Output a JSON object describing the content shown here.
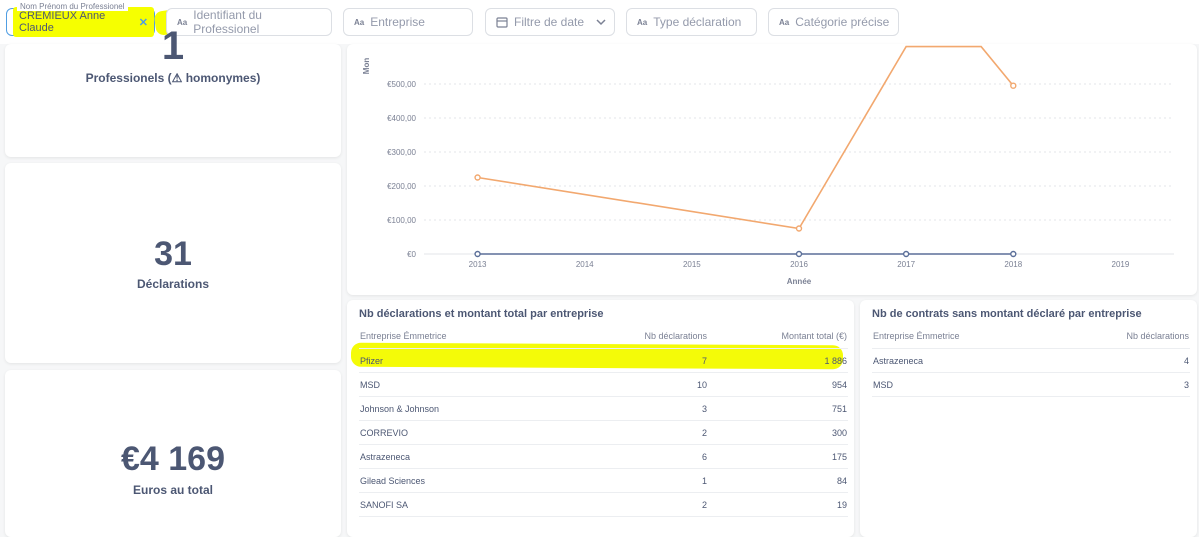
{
  "filters": {
    "active_filter": {
      "legend": "Nom Prénom du Professionel",
      "value": "CREMIEUX Anne Claude"
    },
    "items": [
      {
        "label": "Identifiant du Professionel",
        "icon": "text-icon"
      },
      {
        "label": "Entreprise",
        "icon": "text-icon"
      },
      {
        "label": "Filtre de date",
        "icon": "calendar-icon"
      },
      {
        "label": "Type déclaration",
        "icon": "text-icon"
      },
      {
        "label": "Catégorie précise",
        "icon": "text-icon"
      }
    ],
    "aa": "Aa"
  },
  "scalars": {
    "pros": {
      "value": "1",
      "label": "Professionels (⚠ homonymes)"
    },
    "declarations": {
      "value": "31",
      "label": "Déclarations"
    },
    "euros": {
      "value": "€4 169",
      "label": "Euros au total"
    }
  },
  "chart_data": {
    "type": "line",
    "xlabel": "Année",
    "ylabel": "Mon",
    "x": [
      2013,
      2014,
      2015,
      2016,
      2017,
      2018,
      2019
    ],
    "ylim": [
      0,
      550
    ],
    "yticks": [
      "€0",
      "€100,00",
      "€200,00",
      "€300,00",
      "€400,00",
      "€500,00"
    ],
    "series": [
      {
        "color": "#f2a86f",
        "points": [
          [
            2013,
            225
          ],
          [
            2016,
            75
          ],
          [
            2017,
            610
          ],
          [
            2017.7,
            610
          ],
          [
            2018,
            495
          ]
        ]
      },
      {
        "color": "#5b6f99",
        "points": [
          [
            2013,
            0
          ],
          [
            2016,
            0
          ],
          [
            2017,
            0
          ],
          [
            2018,
            0
          ]
        ]
      }
    ]
  },
  "table1": {
    "title": "Nb déclarations et montant total par entreprise",
    "columns": [
      "Entreprise Émmetrice",
      "Nb déclarations",
      "Montant total (€)"
    ],
    "rows": [
      [
        "Pfizer",
        "7",
        "1 886"
      ],
      [
        "MSD",
        "10",
        "954"
      ],
      [
        "Johnson & Johnson",
        "3",
        "751"
      ],
      [
        "CORREVIO",
        "2",
        "300"
      ],
      [
        "Astrazeneca",
        "6",
        "175"
      ],
      [
        "Gilead Sciences",
        "1",
        "84"
      ],
      [
        "SANOFI SA",
        "2",
        "19"
      ]
    ]
  },
  "table2": {
    "title": "Nb de contrats sans montant déclaré par entreprise",
    "columns": [
      "Entreprise Émmetrice",
      "Nb déclarations"
    ],
    "rows": [
      [
        "Astrazeneca",
        "4"
      ],
      [
        "MSD",
        "3"
      ]
    ]
  },
  "colors": {
    "accent": "#509ee3",
    "highlight": "#f6ff00",
    "line_orange": "#f2a86f",
    "line_blue": "#5b6f99"
  }
}
